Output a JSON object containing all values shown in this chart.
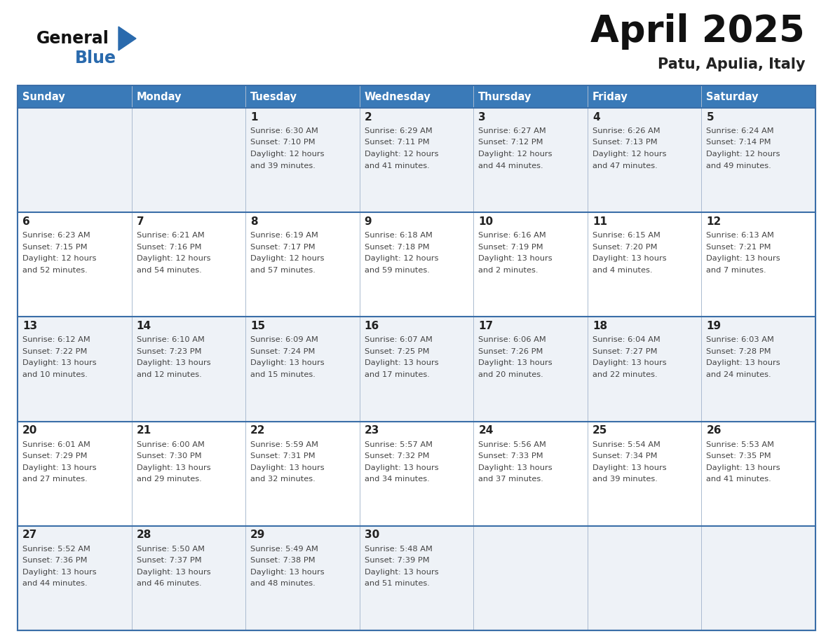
{
  "title": "April 2025",
  "subtitle": "Patu, Apulia, Italy",
  "days_of_week": [
    "Sunday",
    "Monday",
    "Tuesday",
    "Wednesday",
    "Thursday",
    "Friday",
    "Saturday"
  ],
  "header_bg": "#3a7ab8",
  "header_text": "#ffffff",
  "row_bg_odd": "#eef2f7",
  "row_bg_even": "#ffffff",
  "border_color": "#3a6ea8",
  "divider_color": "#aabbd0",
  "text_color": "#333333",
  "num_color": "#222222",
  "info_color": "#444444",
  "logo_general_color": "#111111",
  "logo_blue_color": "#2a6aad",
  "weeks": [
    {
      "days": [
        {
          "day": null,
          "info": null
        },
        {
          "day": null,
          "info": null
        },
        {
          "day": 1,
          "info": "Sunrise: 6:30 AM\nSunset: 7:10 PM\nDaylight: 12 hours\nand 39 minutes."
        },
        {
          "day": 2,
          "info": "Sunrise: 6:29 AM\nSunset: 7:11 PM\nDaylight: 12 hours\nand 41 minutes."
        },
        {
          "day": 3,
          "info": "Sunrise: 6:27 AM\nSunset: 7:12 PM\nDaylight: 12 hours\nand 44 minutes."
        },
        {
          "day": 4,
          "info": "Sunrise: 6:26 AM\nSunset: 7:13 PM\nDaylight: 12 hours\nand 47 minutes."
        },
        {
          "day": 5,
          "info": "Sunrise: 6:24 AM\nSunset: 7:14 PM\nDaylight: 12 hours\nand 49 minutes."
        }
      ]
    },
    {
      "days": [
        {
          "day": 6,
          "info": "Sunrise: 6:23 AM\nSunset: 7:15 PM\nDaylight: 12 hours\nand 52 minutes."
        },
        {
          "day": 7,
          "info": "Sunrise: 6:21 AM\nSunset: 7:16 PM\nDaylight: 12 hours\nand 54 minutes."
        },
        {
          "day": 8,
          "info": "Sunrise: 6:19 AM\nSunset: 7:17 PM\nDaylight: 12 hours\nand 57 minutes."
        },
        {
          "day": 9,
          "info": "Sunrise: 6:18 AM\nSunset: 7:18 PM\nDaylight: 12 hours\nand 59 minutes."
        },
        {
          "day": 10,
          "info": "Sunrise: 6:16 AM\nSunset: 7:19 PM\nDaylight: 13 hours\nand 2 minutes."
        },
        {
          "day": 11,
          "info": "Sunrise: 6:15 AM\nSunset: 7:20 PM\nDaylight: 13 hours\nand 4 minutes."
        },
        {
          "day": 12,
          "info": "Sunrise: 6:13 AM\nSunset: 7:21 PM\nDaylight: 13 hours\nand 7 minutes."
        }
      ]
    },
    {
      "days": [
        {
          "day": 13,
          "info": "Sunrise: 6:12 AM\nSunset: 7:22 PM\nDaylight: 13 hours\nand 10 minutes."
        },
        {
          "day": 14,
          "info": "Sunrise: 6:10 AM\nSunset: 7:23 PM\nDaylight: 13 hours\nand 12 minutes."
        },
        {
          "day": 15,
          "info": "Sunrise: 6:09 AM\nSunset: 7:24 PM\nDaylight: 13 hours\nand 15 minutes."
        },
        {
          "day": 16,
          "info": "Sunrise: 6:07 AM\nSunset: 7:25 PM\nDaylight: 13 hours\nand 17 minutes."
        },
        {
          "day": 17,
          "info": "Sunrise: 6:06 AM\nSunset: 7:26 PM\nDaylight: 13 hours\nand 20 minutes."
        },
        {
          "day": 18,
          "info": "Sunrise: 6:04 AM\nSunset: 7:27 PM\nDaylight: 13 hours\nand 22 minutes."
        },
        {
          "day": 19,
          "info": "Sunrise: 6:03 AM\nSunset: 7:28 PM\nDaylight: 13 hours\nand 24 minutes."
        }
      ]
    },
    {
      "days": [
        {
          "day": 20,
          "info": "Sunrise: 6:01 AM\nSunset: 7:29 PM\nDaylight: 13 hours\nand 27 minutes."
        },
        {
          "day": 21,
          "info": "Sunrise: 6:00 AM\nSunset: 7:30 PM\nDaylight: 13 hours\nand 29 minutes."
        },
        {
          "day": 22,
          "info": "Sunrise: 5:59 AM\nSunset: 7:31 PM\nDaylight: 13 hours\nand 32 minutes."
        },
        {
          "day": 23,
          "info": "Sunrise: 5:57 AM\nSunset: 7:32 PM\nDaylight: 13 hours\nand 34 minutes."
        },
        {
          "day": 24,
          "info": "Sunrise: 5:56 AM\nSunset: 7:33 PM\nDaylight: 13 hours\nand 37 minutes."
        },
        {
          "day": 25,
          "info": "Sunrise: 5:54 AM\nSunset: 7:34 PM\nDaylight: 13 hours\nand 39 minutes."
        },
        {
          "day": 26,
          "info": "Sunrise: 5:53 AM\nSunset: 7:35 PM\nDaylight: 13 hours\nand 41 minutes."
        }
      ]
    },
    {
      "days": [
        {
          "day": 27,
          "info": "Sunrise: 5:52 AM\nSunset: 7:36 PM\nDaylight: 13 hours\nand 44 minutes."
        },
        {
          "day": 28,
          "info": "Sunrise: 5:50 AM\nSunset: 7:37 PM\nDaylight: 13 hours\nand 46 minutes."
        },
        {
          "day": 29,
          "info": "Sunrise: 5:49 AM\nSunset: 7:38 PM\nDaylight: 13 hours\nand 48 minutes."
        },
        {
          "day": 30,
          "info": "Sunrise: 5:48 AM\nSunset: 7:39 PM\nDaylight: 13 hours\nand 51 minutes."
        },
        {
          "day": null,
          "info": null
        },
        {
          "day": null,
          "info": null
        },
        {
          "day": null,
          "info": null
        }
      ]
    }
  ]
}
